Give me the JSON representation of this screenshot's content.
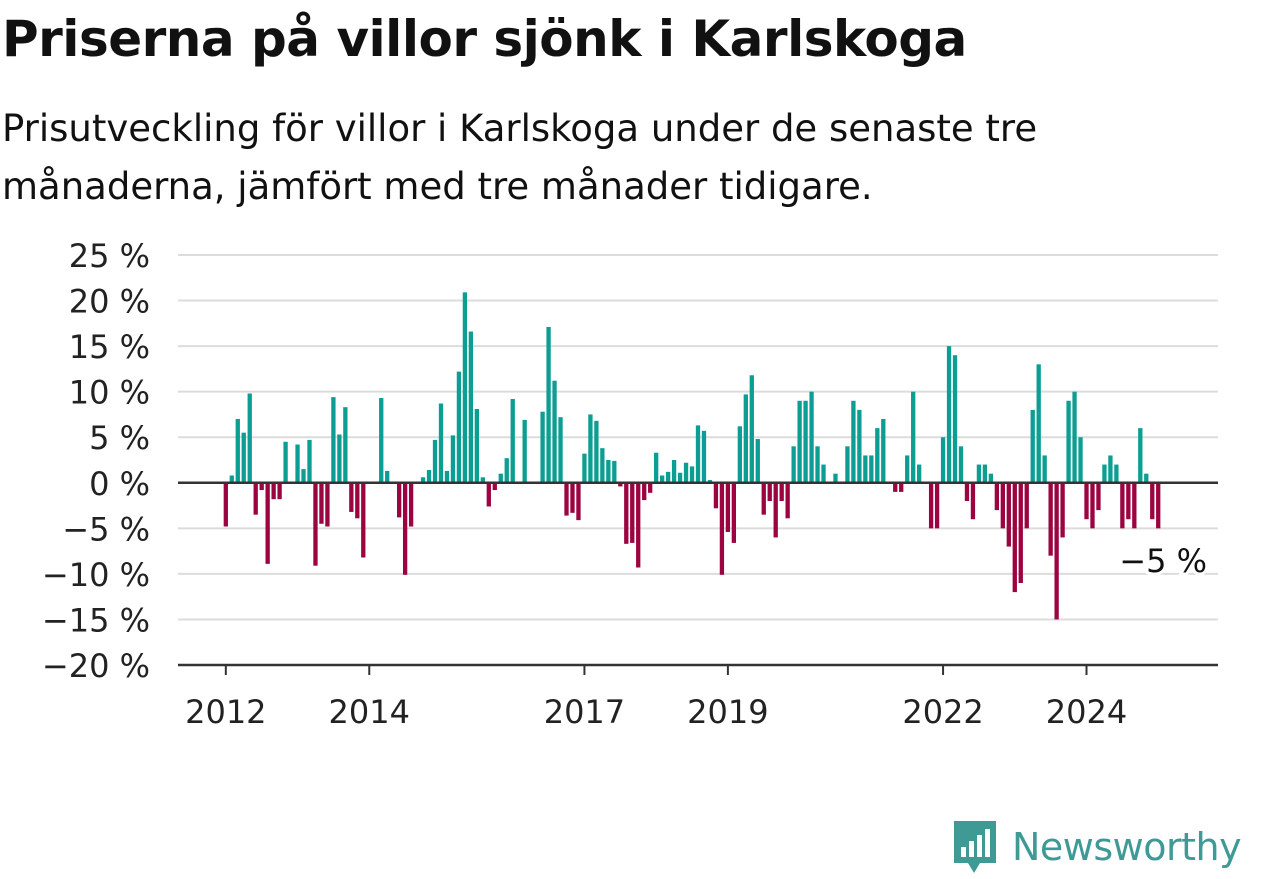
{
  "title": "Priserna på villor sjönk i Karlskoga",
  "subtitle": "Prisutveckling för villor i Karlskoga under de senaste tre månaderna, jämfört med tre månader tidigare.",
  "brand": {
    "name": "Newsworthy",
    "icon": "newsworthy-logo-icon",
    "color": "#3f9a95"
  },
  "colors": {
    "positive": "#0c9e93",
    "negative": "#9b0440",
    "grid": "#dcdcdc",
    "axis": "#333333"
  },
  "chart_data": {
    "type": "bar",
    "title": "Priserna på villor sjönk i Karlskoga",
    "ylim": [
      -20,
      25
    ],
    "y_ticks": [
      25,
      20,
      15,
      10,
      5,
      0,
      -5,
      -10,
      -15,
      -20
    ],
    "y_tick_labels": [
      "25 %",
      "20 %",
      "15 %",
      "10 %",
      "5 %",
      "0 %",
      "−5 %",
      "−10 %",
      "−15 %",
      "−20 %"
    ],
    "x_range": [
      "2011-05",
      "2025-11"
    ],
    "x_ticks": [
      {
        "date": "2012-01",
        "label": "2012"
      },
      {
        "date": "2014-01",
        "label": "2014"
      },
      {
        "date": "2017-01",
        "label": "2017"
      },
      {
        "date": "2019-01",
        "label": "2019"
      },
      {
        "date": "2022-01",
        "label": "2022"
      },
      {
        "date": "2024-01",
        "label": "2024"
      }
    ],
    "grid": true,
    "start_month": "2012-01",
    "values": [
      -4.8,
      0.8,
      7,
      5.5,
      9.8,
      -3.5,
      -0.8,
      -8.9,
      -1.8,
      -1.8,
      4.5,
      0,
      4.2,
      1.5,
      4.7,
      -9.1,
      -4.5,
      -4.8,
      9.4,
      5.3,
      8.3,
      -3.2,
      -3.9,
      -8.2,
      0,
      0,
      9.3,
      1.3,
      0,
      -3.8,
      -10.1,
      -4.8,
      0,
      0.6,
      1.4,
      4.7,
      8.7,
      1.3,
      5.2,
      12.2,
      20.9,
      16.6,
      8.1,
      0.6,
      -2.6,
      -0.8,
      1,
      2.7,
      9.2,
      0,
      6.9,
      0,
      0,
      7.8,
      17.1,
      11.2,
      7.2,
      -3.6,
      -3.3,
      -4.1,
      3.2,
      7.5,
      6.8,
      3.8,
      2.5,
      2.4,
      -0.4,
      -6.7,
      -6.6,
      -9.3,
      -1.9,
      -1.1,
      3.3,
      0.8,
      1.2,
      2.5,
      1.1,
      2.2,
      1.8,
      6.3,
      5.7,
      0.3,
      -2.8,
      -10.1,
      -5.4,
      -6.6,
      6.2,
      9.7,
      11.8,
      4.8,
      -3.5,
      -2,
      -6,
      -2,
      -3.9,
      4,
      9,
      9,
      10,
      4,
      2,
      0,
      1,
      0,
      4,
      9,
      8,
      3,
      3,
      6,
      7,
      0,
      -1,
      -1,
      3,
      10,
      2,
      0,
      -5,
      -5,
      5,
      15,
      14,
      4,
      -2,
      -4,
      2,
      2,
      1,
      -3,
      -5,
      -7,
      -12,
      -11,
      -5,
      8,
      13,
      3,
      -8,
      -15,
      -6,
      9,
      10,
      5,
      -4,
      -5,
      -3,
      2,
      3,
      2,
      -5,
      -4,
      -5,
      6,
      1,
      -4,
      -5
    ],
    "annotation": {
      "label": "−5 %",
      "value": -5
    }
  }
}
